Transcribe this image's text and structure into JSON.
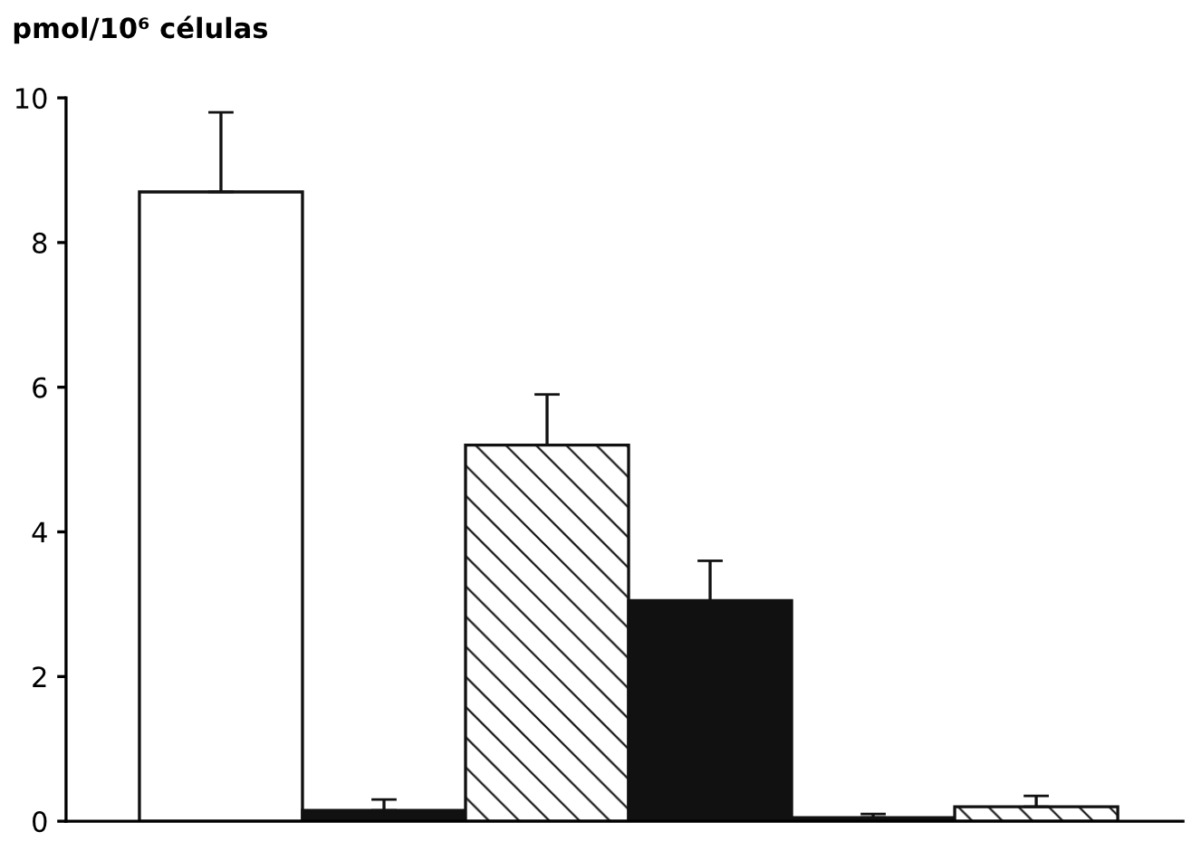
{
  "chart_data": {
    "type": "bar",
    "ylabel": "pmol/10⁶ células",
    "categories": [
      null,
      null,
      null,
      null,
      null,
      null
    ],
    "values": [
      8.7,
      0.15,
      5.2,
      3.05,
      0.05,
      0.2
    ],
    "colors": [
      "#ffffff",
      "#111111",
      "#ffffff",
      "#111111",
      "#111111",
      "#ffffff"
    ],
    "errors": [
      [
        8.7,
        9.8
      ],
      [
        0.15,
        0.3
      ],
      [
        5.2,
        5.9
      ],
      [
        3.05,
        3.6
      ],
      [
        0.05,
        0.1
      ],
      [
        0.2,
        0.35
      ]
    ],
    "ylim": [
      0,
      10
    ],
    "yticks": [
      0,
      2,
      4,
      6,
      8,
      10
    ],
    "grid": false,
    "legend": false
  }
}
